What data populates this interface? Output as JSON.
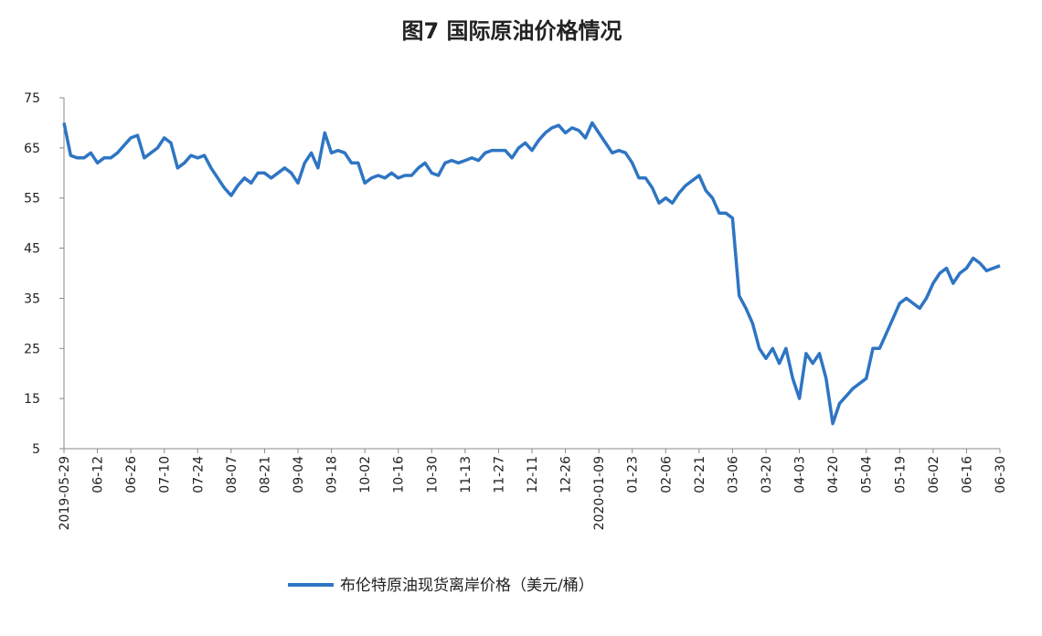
{
  "chart_data": {
    "type": "line",
    "title": "图7  国际原油价格情况",
    "categories": [
      "2019-05-29",
      null,
      null,
      null,
      null,
      "06-12",
      null,
      null,
      null,
      null,
      "06-26",
      null,
      null,
      null,
      null,
      "07-10",
      null,
      null,
      null,
      null,
      "07-24",
      null,
      null,
      null,
      null,
      "08-07",
      null,
      null,
      null,
      null,
      "08-21",
      null,
      null,
      null,
      null,
      "09-04",
      null,
      null,
      null,
      null,
      "09-18",
      null,
      null,
      null,
      null,
      "10-02",
      null,
      null,
      null,
      null,
      "10-16",
      null,
      null,
      null,
      null,
      "10-30",
      null,
      null,
      null,
      null,
      "11-13",
      null,
      null,
      null,
      null,
      "11-27",
      null,
      null,
      null,
      null,
      "12-11",
      null,
      null,
      null,
      null,
      "12-26",
      null,
      null,
      null,
      null,
      "2020-01-09",
      null,
      null,
      null,
      null,
      "01-23",
      null,
      null,
      null,
      null,
      "02-06",
      null,
      null,
      null,
      null,
      "02-21",
      null,
      null,
      null,
      null,
      "03-06",
      null,
      null,
      null,
      null,
      "03-20",
      null,
      null,
      null,
      null,
      "04-03",
      null,
      null,
      null,
      null,
      "04-20",
      null,
      null,
      null,
      null,
      "05-04",
      null,
      null,
      null,
      null,
      "05-19",
      null,
      null,
      null,
      null,
      "06-02",
      null,
      null,
      null,
      null,
      "06-16",
      null,
      null,
      null,
      null,
      "06-30"
    ],
    "series": [
      {
        "name": "布伦特原油现货离岸价格（美元/桶）",
        "color": "#2e75c3",
        "values": [
          70,
          63.5,
          63,
          63,
          64,
          62,
          63,
          63,
          64,
          65.5,
          67,
          67.5,
          63,
          64,
          65,
          67,
          66,
          61,
          62,
          63.5,
          63,
          63.5,
          61,
          59,
          57,
          55.5,
          57.5,
          59,
          58,
          60,
          60,
          59,
          60,
          61,
          60,
          58,
          62,
          64,
          61,
          68,
          64,
          64.5,
          64,
          62,
          62,
          58,
          59,
          59.5,
          59,
          60,
          59,
          59.5,
          59.5,
          61,
          62,
          60,
          59.5,
          62,
          62.5,
          62,
          62.5,
          63,
          62.5,
          64,
          64.5,
          64.5,
          64.5,
          63,
          65,
          66,
          64.5,
          66.5,
          68,
          69,
          69.5,
          68,
          69,
          68.5,
          67,
          70,
          68,
          66,
          64,
          64.5,
          64,
          62,
          59,
          59,
          57,
          54,
          55,
          54,
          56,
          57.5,
          58.5,
          59.5,
          56.5,
          55,
          52,
          52,
          51,
          35.5,
          33,
          30,
          25,
          23,
          25,
          22,
          25,
          19,
          15,
          24,
          22,
          24,
          19,
          10,
          14,
          15.5,
          17,
          18,
          19,
          25,
          25,
          28,
          31,
          34,
          35,
          34,
          33,
          35,
          38,
          40,
          41,
          38,
          40,
          41,
          43,
          42,
          40.5,
          41,
          41.5
        ]
      }
    ],
    "ylim": [
      5,
      75
    ],
    "yticks": [
      5,
      15,
      25,
      35,
      45,
      55,
      65,
      75
    ],
    "legend": "bottom"
  }
}
